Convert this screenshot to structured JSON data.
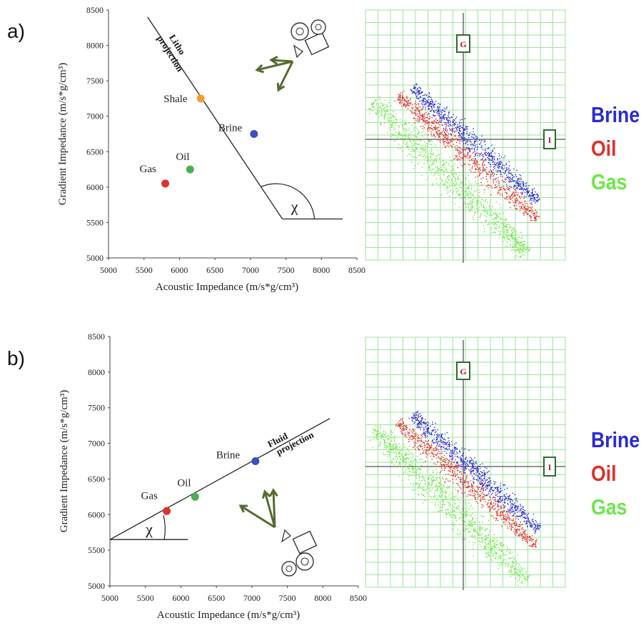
{
  "panels": [
    {
      "label": "a)"
    },
    {
      "label": "b)"
    }
  ],
  "legend": {
    "items": [
      {
        "name": "Brine",
        "color": "#2a2ad6"
      },
      {
        "name": "Oil",
        "color": "#e0302a"
      },
      {
        "name": "Gas",
        "color": "#6ee64a"
      }
    ]
  },
  "chart_data": [
    {
      "type": "scatter",
      "panel": "a)",
      "xlabel": "Acoustic Impedance (m/s*g/cm³)",
      "ylabel": "Gradient Impedance (m/s*g/cm³)",
      "xlim": [
        5000,
        8500
      ],
      "ylim": [
        5000,
        8500
      ],
      "xticks": [
        "5000",
        "5500",
        "6000",
        "6500",
        "7000",
        "7500",
        "8000",
        "8500"
      ],
      "yticks": [
        "5000",
        "5500",
        "6000",
        "6500",
        "7000",
        "7500",
        "8000",
        "8500"
      ],
      "points": [
        {
          "name": "Shale",
          "x": 6300,
          "y": 7250,
          "color": "#f0a030"
        },
        {
          "name": "Brine",
          "x": 7050,
          "y": 6750,
          "color": "#3a4fc0"
        },
        {
          "name": "Oil",
          "x": 6150,
          "y": 6250,
          "color": "#4caf50"
        },
        {
          "name": "Gas",
          "x": 5800,
          "y": 6050,
          "color": "#e0302a"
        }
      ],
      "projection_label": [
        "Litho",
        "projection"
      ],
      "angle_label": "χ"
    },
    {
      "type": "scatter",
      "panel": "b)",
      "xlabel": "Acoustic Impedance (m/s*g/cm³)",
      "ylabel": "Gradient Impedance (m/s*g/cm³)",
      "xlim": [
        5000,
        8500
      ],
      "ylim": [
        5000,
        8500
      ],
      "xticks": [
        "5000",
        "5500",
        "6000",
        "6500",
        "7000",
        "7500",
        "8000",
        "8500"
      ],
      "yticks": [
        "5000",
        "5500",
        "6000",
        "6500",
        "7000",
        "7500",
        "8000",
        "8500"
      ],
      "points": [
        {
          "name": "Brine",
          "x": 7050,
          "y": 6750,
          "color": "#3a4fc0"
        },
        {
          "name": "Oil",
          "x": 6200,
          "y": 6250,
          "color": "#4caf50"
        },
        {
          "name": "Gas",
          "x": 5800,
          "y": 6050,
          "color": "#e0302a"
        }
      ],
      "projection_label": [
        "Fluid",
        "projection"
      ],
      "angle_label": "χ"
    },
    {
      "type": "scatter",
      "panel": "a)",
      "axis_labels": {
        "vertical": "G",
        "horizontal": "I"
      },
      "series": [
        {
          "name": "Brine",
          "color": "#2a2ad6"
        },
        {
          "name": "Oil",
          "color": "#e0302a"
        },
        {
          "name": "Gas",
          "color": "#6ee64a"
        }
      ],
      "grid": true
    },
    {
      "type": "scatter",
      "panel": "b)",
      "axis_labels": {
        "vertical": "G",
        "horizontal": "I"
      },
      "series": [
        {
          "name": "Brine",
          "color": "#2a2ad6"
        },
        {
          "name": "Oil",
          "color": "#e0302a"
        },
        {
          "name": "Gas",
          "color": "#6ee64a"
        }
      ],
      "grid": true
    }
  ]
}
